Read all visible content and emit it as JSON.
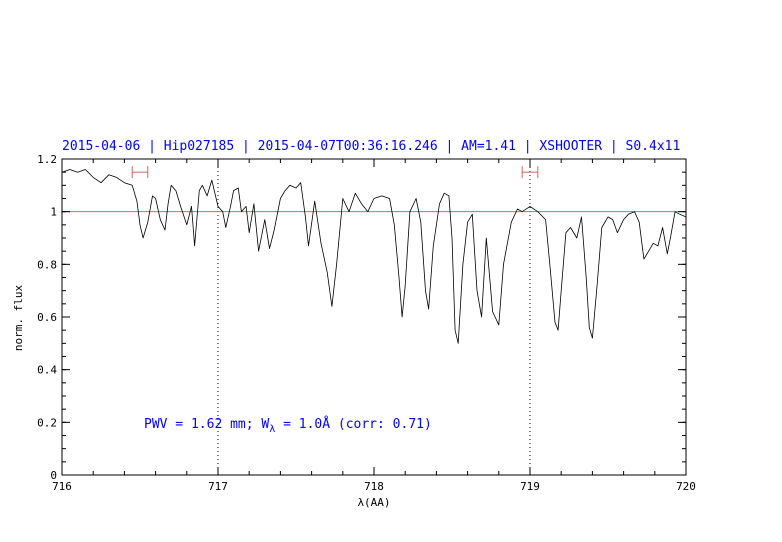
{
  "chart_data": {
    "type": "line",
    "title": "2015-04-06 | Hip027185 | 2015-04-07T00:36:16.246 | AM=1.41 | XSHOOTER | S0.4x11",
    "xlabel": "λ(AA)",
    "ylabel": "norm. flux",
    "xlim": [
      716,
      720
    ],
    "ylim": [
      0,
      1.2
    ],
    "x_ticks": [
      "716",
      "717",
      "718",
      "719",
      "720"
    ],
    "y_ticks": [
      "0",
      "0.2",
      "0.4",
      "0.6",
      "0.8",
      "1",
      "1.2"
    ],
    "reference_line": {
      "y": 1.0,
      "color": "#e06060"
    },
    "vertical_dotted_lines": [
      717.0,
      719.0
    ],
    "fit_ranges": [
      {
        "x": [
          716.45,
          716.55
        ],
        "y": 1.15,
        "color": "#e06060"
      },
      {
        "x": [
          718.95,
          719.05
        ],
        "y": 1.15,
        "color": "#e06060"
      }
    ],
    "annotation": {
      "prefix": "PWV = 1.62 mm; W",
      "subscript": "λ",
      "suffix": " = 1.0Å (corr: 0.71)",
      "color": "#0000ff"
    },
    "series": [
      {
        "color": "#000000",
        "points": [
          [
            716.0,
            1.15
          ],
          [
            716.05,
            1.16
          ],
          [
            716.1,
            1.15
          ],
          [
            716.15,
            1.16
          ],
          [
            716.2,
            1.13
          ],
          [
            716.25,
            1.11
          ],
          [
            716.3,
            1.14
          ],
          [
            716.35,
            1.13
          ],
          [
            716.4,
            1.11
          ],
          [
            716.45,
            1.1
          ],
          [
            716.48,
            1.04
          ],
          [
            716.5,
            0.95
          ],
          [
            716.52,
            0.9
          ],
          [
            716.55,
            0.96
          ],
          [
            716.58,
            1.06
          ],
          [
            716.6,
            1.05
          ],
          [
            716.63,
            0.97
          ],
          [
            716.66,
            0.93
          ],
          [
            716.68,
            1.03
          ],
          [
            716.7,
            1.1
          ],
          [
            716.73,
            1.08
          ],
          [
            716.76,
            1.02
          ],
          [
            716.8,
            0.95
          ],
          [
            716.83,
            1.02
          ],
          [
            716.85,
            0.87
          ],
          [
            716.88,
            1.08
          ],
          [
            716.9,
            1.1
          ],
          [
            716.93,
            1.06
          ],
          [
            716.96,
            1.12
          ],
          [
            717.0,
            1.02
          ],
          [
            717.03,
            1.0
          ],
          [
            717.05,
            0.94
          ],
          [
            717.08,
            1.02
          ],
          [
            717.1,
            1.08
          ],
          [
            717.13,
            1.09
          ],
          [
            717.15,
            1.0
          ],
          [
            717.18,
            1.02
          ],
          [
            717.2,
            0.92
          ],
          [
            717.23,
            1.03
          ],
          [
            717.26,
            0.85
          ],
          [
            717.28,
            0.91
          ],
          [
            717.3,
            0.97
          ],
          [
            717.33,
            0.86
          ],
          [
            717.36,
            0.93
          ],
          [
            717.4,
            1.05
          ],
          [
            717.43,
            1.08
          ],
          [
            717.46,
            1.1
          ],
          [
            717.5,
            1.09
          ],
          [
            717.53,
            1.11
          ],
          [
            717.56,
            0.98
          ],
          [
            717.58,
            0.87
          ],
          [
            717.62,
            1.04
          ],
          [
            717.66,
            0.88
          ],
          [
            717.7,
            0.77
          ],
          [
            717.73,
            0.64
          ],
          [
            717.76,
            0.8
          ],
          [
            717.8,
            1.05
          ],
          [
            717.84,
            1.0
          ],
          [
            717.88,
            1.07
          ],
          [
            717.92,
            1.03
          ],
          [
            717.96,
            1.0
          ],
          [
            718.0,
            1.05
          ],
          [
            718.05,
            1.06
          ],
          [
            718.1,
            1.05
          ],
          [
            718.13,
            0.95
          ],
          [
            718.16,
            0.75
          ],
          [
            718.18,
            0.6
          ],
          [
            718.2,
            0.72
          ],
          [
            718.23,
            1.0
          ],
          [
            718.27,
            1.05
          ],
          [
            718.3,
            0.96
          ],
          [
            718.33,
            0.7
          ],
          [
            718.35,
            0.63
          ],
          [
            718.38,
            0.87
          ],
          [
            718.42,
            1.03
          ],
          [
            718.45,
            1.07
          ],
          [
            718.48,
            1.06
          ],
          [
            718.5,
            0.9
          ],
          [
            718.52,
            0.55
          ],
          [
            718.54,
            0.5
          ],
          [
            718.57,
            0.8
          ],
          [
            718.6,
            0.96
          ],
          [
            718.63,
            0.99
          ],
          [
            718.66,
            0.7
          ],
          [
            718.69,
            0.6
          ],
          [
            718.72,
            0.9
          ],
          [
            718.76,
            0.62
          ],
          [
            718.8,
            0.57
          ],
          [
            718.83,
            0.8
          ],
          [
            718.88,
            0.96
          ],
          [
            718.92,
            1.01
          ],
          [
            718.95,
            1.0
          ],
          [
            719.0,
            1.02
          ],
          [
            719.05,
            1.0
          ],
          [
            719.1,
            0.97
          ],
          [
            719.13,
            0.78
          ],
          [
            719.16,
            0.58
          ],
          [
            719.18,
            0.55
          ],
          [
            719.2,
            0.7
          ],
          [
            719.23,
            0.92
          ],
          [
            719.26,
            0.94
          ],
          [
            719.3,
            0.9
          ],
          [
            719.33,
            0.98
          ],
          [
            719.36,
            0.75
          ],
          [
            719.38,
            0.56
          ],
          [
            719.4,
            0.52
          ],
          [
            719.43,
            0.72
          ],
          [
            719.46,
            0.94
          ],
          [
            719.5,
            0.98
          ],
          [
            719.53,
            0.97
          ],
          [
            719.56,
            0.92
          ],
          [
            719.6,
            0.97
          ],
          [
            719.63,
            0.99
          ],
          [
            719.67,
            1.0
          ],
          [
            719.7,
            0.96
          ],
          [
            719.73,
            0.82
          ],
          [
            719.76,
            0.85
          ],
          [
            719.79,
            0.88
          ],
          [
            719.82,
            0.87
          ],
          [
            719.85,
            0.94
          ],
          [
            719.88,
            0.84
          ],
          [
            719.9,
            0.9
          ],
          [
            719.93,
            1.0
          ],
          [
            719.96,
            0.99
          ],
          [
            720.0,
            0.98
          ]
        ]
      }
    ]
  }
}
